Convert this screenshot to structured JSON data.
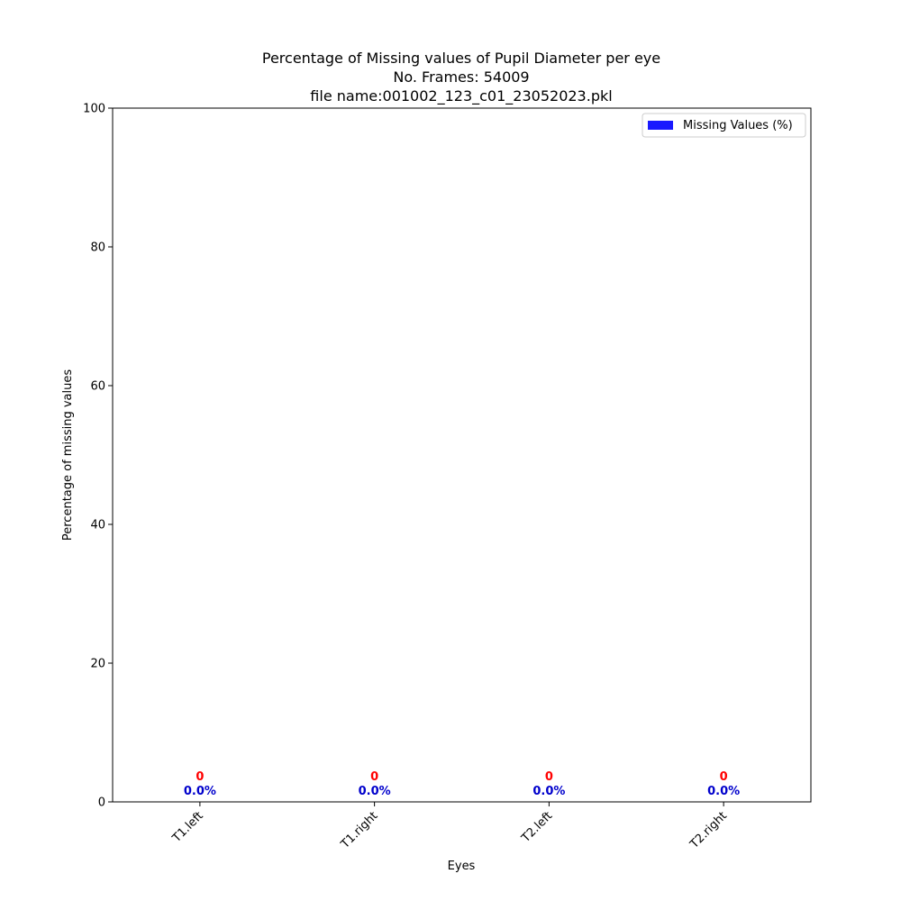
{
  "chart_data": {
    "type": "bar",
    "title_lines": [
      "Percentage of Missing values of Pupil Diameter per eye",
      "No. Frames: 54009",
      "file name:001002_123_c01_23052023.pkl"
    ],
    "xlabel": "Eyes",
    "ylabel": "Percentage of missing values",
    "categories": [
      "T1.left",
      "T1.right",
      "T2.left",
      "T2.right"
    ],
    "series": [
      {
        "name": "Missing Values (%)",
        "values": [
          0.0,
          0.0,
          0.0,
          0.0
        ],
        "color": "#1a1aff"
      }
    ],
    "count_labels": [
      "0",
      "0",
      "0",
      "0"
    ],
    "percent_labels": [
      "0.0%",
      "0.0%",
      "0.0%",
      "0.0%"
    ],
    "count_label_color": "#ff0000",
    "percent_label_color": "#0000cc",
    "ylim": [
      0,
      100
    ],
    "yticks": [
      "0",
      "20",
      "40",
      "60",
      "80",
      "100"
    ],
    "legend_position": "top-right",
    "grid": false
  }
}
